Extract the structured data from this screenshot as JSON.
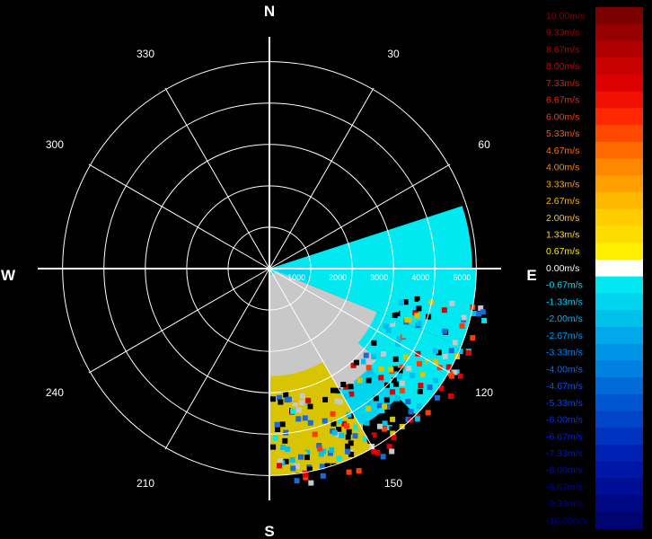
{
  "chart_data": {
    "type": "heatmap",
    "subtype": "radar-ppi-radial-velocity",
    "cardinal_labels": {
      "north": "N",
      "east": "E",
      "south": "S",
      "west": "W"
    },
    "azimuth_labels": [
      "30",
      "60",
      "120",
      "150",
      "210",
      "240",
      "300",
      "330"
    ],
    "azimuth_label_angles_deg": [
      30,
      60,
      120,
      150,
      210,
      240,
      300,
      330
    ],
    "range_labels": [
      "1000",
      "2000",
      "3000",
      "4000",
      "5000"
    ],
    "range_rings": [
      1000,
      2000,
      3000,
      4000,
      5000
    ],
    "range_max": 5600,
    "spoke_step_deg": 30,
    "velocity_unit": "m/s",
    "legend": {
      "placement": "right",
      "labels": [
        "10.00m/s",
        "9.33m/s",
        "8.67m/s",
        "8.00m/s",
        "7.33m/s",
        "6.67m/s",
        "6.00m/s",
        "5.33m/s",
        "4.67m/s",
        "4.00m/s",
        "3.33m/s",
        "2.67m/s",
        "2.00m/s",
        "1.33m/s",
        "0.67m/s",
        "0.00m/s",
        "-0.67m/s",
        "-1.33m/s",
        "-2.00m/s",
        "-2.67m/s",
        "-3.33m/s",
        "-4.00m/s",
        "-4.67m/s",
        "-5.33m/s",
        "-6.00m/s",
        "-6.67m/s",
        "-7.33m/s",
        "-8.00m/s",
        "-8.67m/s",
        "-9.33m/s",
        "-10.00m/s"
      ],
      "colors": [
        "#7a0000",
        "#960000",
        "#b00000",
        "#c80000",
        "#dc0000",
        "#f01000",
        "#ff2800",
        "#ff4800",
        "#ff6a00",
        "#ff8800",
        "#ffa000",
        "#ffb800",
        "#ffcc00",
        "#ffdc00",
        "#ffee00",
        "#ffffff",
        "#00e8f0",
        "#00d4ee",
        "#00c0ec",
        "#00aaea",
        "#0094e6",
        "#0080e0",
        "#006ad8",
        "#0056d0",
        "#0044c8",
        "#0032c0",
        "#0022b4",
        "#0016a6",
        "#000e96",
        "#000884",
        "#000470"
      ],
      "label_colors": [
        "#8a0000",
        "#a00000",
        "#b80000",
        "#cc0000",
        "#dd1a00",
        "#ee2a00",
        "#ff3c00",
        "#ff5500",
        "#ff6e00",
        "#ff8800",
        "#ffa000",
        "#ffb400",
        "#ffc800",
        "#ffdc00",
        "#ffee00",
        "#ffffff",
        "#00e0ff",
        "#00ccff",
        "#00b4ff",
        "#009cff",
        "#0084ff",
        "#006cff",
        "#0058ff",
        "#0044ff",
        "#0032ee",
        "#0022dd",
        "#0016cc",
        "#000cbb",
        "#0006aa",
        "#000399",
        "#000088"
      ]
    },
    "echo_sectors": [
      {
        "az_start": 90,
        "az_end": 180,
        "r_start": 0,
        "r_end": 600,
        "value": -0.67
      },
      {
        "az_start": 72,
        "az_end": 90,
        "r_start": 0,
        "r_end": 4900,
        "value": -0.67
      },
      {
        "az_start": 90,
        "az_end": 112,
        "r_start": 150,
        "r_end": 5000,
        "value": -0.67
      },
      {
        "az_start": 112,
        "az_end": 135,
        "r_start": 1800,
        "r_end": 5000,
        "value": -0.67
      },
      {
        "az_start": 135,
        "az_end": 160,
        "r_start": 2800,
        "r_end": 4400,
        "value": -1.33
      },
      {
        "az_start": 92,
        "az_end": 108,
        "r_start": 200,
        "r_end": 1000,
        "value": -1.33
      },
      {
        "az_start": 112,
        "az_end": 180,
        "r_start": 150,
        "r_end": 2800,
        "value": 0.0,
        "color": "#c8c8c8"
      },
      {
        "az_start": 150,
        "az_end": 180,
        "r_start": 2600,
        "r_end": 5000,
        "value": 0.67,
        "color": "#d8c400"
      },
      {
        "az_start": 130,
        "az_end": 150,
        "r_start": 2400,
        "r_end": 3400,
        "value": 0.0,
        "color": "#c8c8c8"
      }
    ]
  }
}
